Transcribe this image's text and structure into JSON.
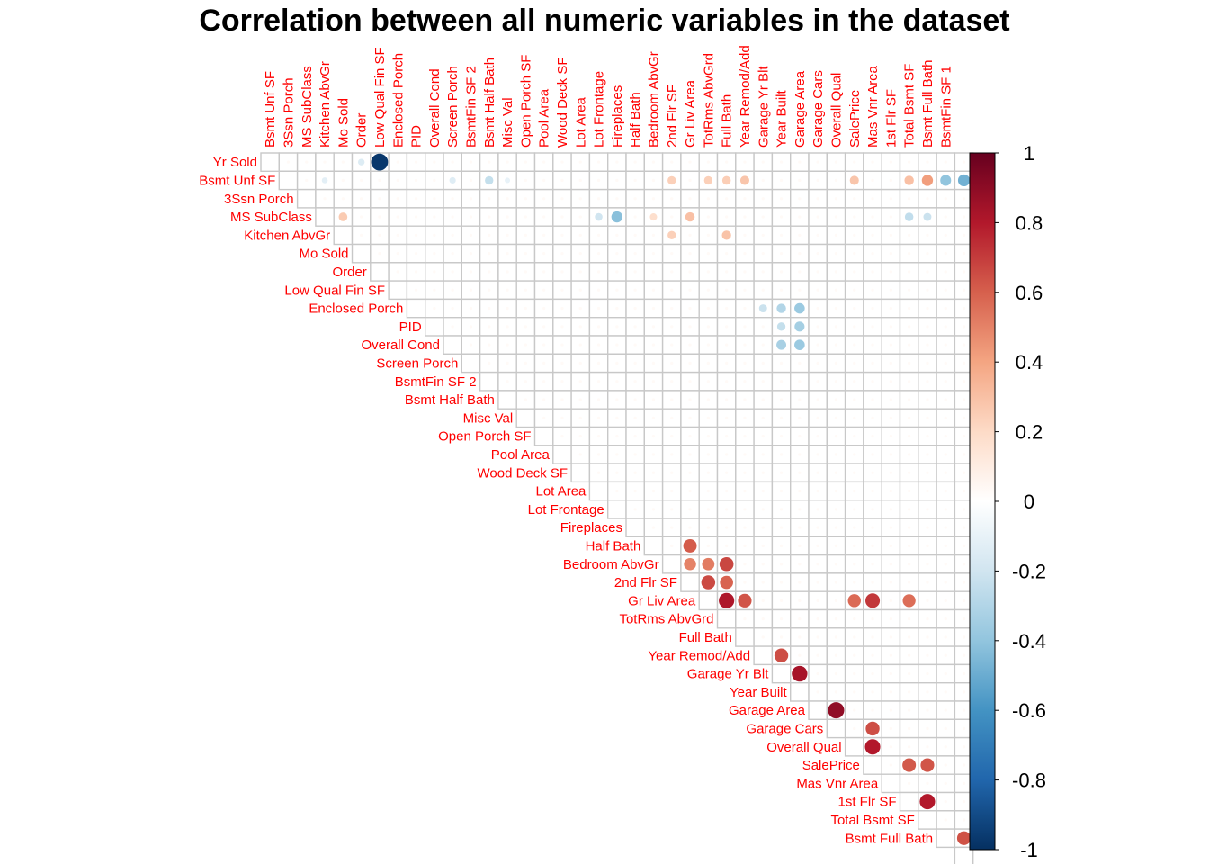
{
  "chart_data": {
    "type": "heatmap",
    "title": "Correlation between all numeric variables in the dataset",
    "variables": [
      "Yr Sold",
      "Bsmt Unf SF",
      "3Ssn Porch",
      "MS SubClass",
      "Kitchen AbvGr",
      "Mo Sold",
      "Order",
      "Low Qual Fin SF",
      "Enclosed Porch",
      "PID",
      "Overall Cond",
      "Screen Porch",
      "BsmtFin SF 2",
      "Bsmt Half Bath",
      "Misc Val",
      "Open Porch SF",
      "Pool Area",
      "Wood Deck SF",
      "Lot Area",
      "Lot Frontage",
      "Fireplaces",
      "Half Bath",
      "Bedroom AbvGr",
      "2nd Flr SF",
      "Gr Liv Area",
      "TotRms AbvGrd",
      "Full Bath",
      "Year Remod/Add",
      "Garage Yr Blt",
      "Year Built",
      "Garage Area",
      "Garage Cars",
      "Overall Qual",
      "SalePrice",
      "Mas Vnr Area",
      "1st Flr SF",
      "Total Bsmt SF",
      "Bsmt Full Bath",
      "BsmtFin SF 1"
    ],
    "matrix_layout": "upper-triangle",
    "label_color": "#ff0000",
    "colorbar": {
      "ticks": [
        "1",
        "0.8",
        "0.6",
        "0.4",
        "0.2",
        "0",
        "-0.2",
        "-0.4",
        "-0.6",
        "-0.8",
        "-1"
      ],
      "range": [
        -1,
        1
      ],
      "colors": [
        "#67001f",
        "#b2182b",
        "#d6604d",
        "#f4a582",
        "#fddbc7",
        "#ffffff",
        "#d1e5f0",
        "#92c5de",
        "#4393c3",
        "#2166ac",
        "#053061"
      ]
    },
    "notable_correlations": [
      {
        "a": "Yr Sold",
        "b": "Mo Sold",
        "r": -0.15
      },
      {
        "a": "Yr Sold",
        "b": "Order",
        "r": -0.97
      },
      {
        "a": "Bsmt Unf SF",
        "b": "MS SubClass",
        "r": -0.12
      },
      {
        "a": "Bsmt Unf SF",
        "b": "Overall Cond",
        "r": -0.14
      },
      {
        "a": "Bsmt Unf SF",
        "b": "BsmtFin SF 2",
        "r": -0.24
      },
      {
        "a": "Bsmt Unf SF",
        "b": "Bsmt Half Bath",
        "r": -0.1
      },
      {
        "a": "Bsmt Unf SF",
        "b": "Bedroom AbvGr",
        "r": 0.24
      },
      {
        "a": "Bsmt Unf SF",
        "b": "Gr Liv Area",
        "r": 0.24
      },
      {
        "a": "Bsmt Unf SF",
        "b": "TotRms AbvGrd",
        "r": 0.25
      },
      {
        "a": "Bsmt Unf SF",
        "b": "Full Bath",
        "r": 0.28
      },
      {
        "a": "Bsmt Unf SF",
        "b": "Overall Qual",
        "r": 0.28
      },
      {
        "a": "Bsmt Unf SF",
        "b": "1st Flr SF",
        "r": 0.3
      },
      {
        "a": "Bsmt Unf SF",
        "b": "Total Bsmt SF",
        "r": 0.42
      },
      {
        "a": "Bsmt Unf SF",
        "b": "Bsmt Full Bath",
        "r": -0.4
      },
      {
        "a": "Bsmt Unf SF",
        "b": "BsmtFin SF 1",
        "r": -0.48
      },
      {
        "a": "MS SubClass",
        "b": "Kitchen AbvGr",
        "r": 0.26
      },
      {
        "a": "MS SubClass",
        "b": "Lot Area",
        "r": -0.2
      },
      {
        "a": "MS SubClass",
        "b": "Lot Frontage",
        "r": -0.42
      },
      {
        "a": "MS SubClass",
        "b": "Half Bath",
        "r": 0.18
      },
      {
        "a": "MS SubClass",
        "b": "2nd Flr SF",
        "r": 0.3
      },
      {
        "a": "MS SubClass",
        "b": "1st Flr SF",
        "r": -0.25
      },
      {
        "a": "MS SubClass",
        "b": "Total Bsmt SF",
        "r": -0.22
      },
      {
        "a": "Kitchen AbvGr",
        "b": "Bedroom AbvGr",
        "r": 0.24
      },
      {
        "a": "Kitchen AbvGr",
        "b": "TotRms AbvGrd",
        "r": 0.29
      },
      {
        "a": "Enclosed Porch",
        "b": "Year Remod/Add",
        "r": -0.22
      },
      {
        "a": "Enclosed Porch",
        "b": "Garage Yr Blt",
        "r": -0.3
      },
      {
        "a": "Enclosed Porch",
        "b": "Year Built",
        "r": -0.37
      },
      {
        "a": "PID",
        "b": "Garage Yr Blt",
        "r": -0.24
      },
      {
        "a": "PID",
        "b": "Year Built",
        "r": -0.34
      },
      {
        "a": "Overall Cond",
        "b": "Garage Yr Blt",
        "r": -0.33
      },
      {
        "a": "Overall Cond",
        "b": "Year Built",
        "r": -0.37
      },
      {
        "a": "Half Bath",
        "b": "2nd Flr SF",
        "r": 0.61
      },
      {
        "a": "Bedroom AbvGr",
        "b": "2nd Flr SF",
        "r": 0.5
      },
      {
        "a": "Bedroom AbvGr",
        "b": "Gr Liv Area",
        "r": 0.52
      },
      {
        "a": "Bedroom AbvGr",
        "b": "TotRms AbvGrd",
        "r": 0.67
      },
      {
        "a": "2nd Flr SF",
        "b": "Gr Liv Area",
        "r": 0.66
      },
      {
        "a": "2nd Flr SF",
        "b": "TotRms AbvGrd",
        "r": 0.59
      },
      {
        "a": "Gr Liv Area",
        "b": "TotRms AbvGrd",
        "r": 0.81
      },
      {
        "a": "Gr Liv Area",
        "b": "Full Bath",
        "r": 0.63
      },
      {
        "a": "Gr Liv Area",
        "b": "SalePrice",
        "r": 0.71
      },
      {
        "a": "Gr Liv Area",
        "b": "Overall Qual",
        "r": 0.57
      },
      {
        "a": "Gr Liv Area",
        "b": "1st Flr SF",
        "r": 0.56
      },
      {
        "a": "Year Remod/Add",
        "b": "Garage Yr Blt",
        "r": 0.65
      },
      {
        "a": "Garage Yr Blt",
        "b": "Year Built",
        "r": 0.83
      },
      {
        "a": "Garage Area",
        "b": "Garage Cars",
        "r": 0.89
      },
      {
        "a": "Garage Cars",
        "b": "SalePrice",
        "r": 0.65
      },
      {
        "a": "Overall Qual",
        "b": "SalePrice",
        "r": 0.8
      },
      {
        "a": "SalePrice",
        "b": "1st Flr SF",
        "r": 0.62
      },
      {
        "a": "SalePrice",
        "b": "Total Bsmt SF",
        "r": 0.63
      },
      {
        "a": "1st Flr SF",
        "b": "Total Bsmt SF",
        "r": 0.8
      },
      {
        "a": "Bsmt Full Bath",
        "b": "BsmtFin SF 1",
        "r": 0.64
      }
    ]
  }
}
